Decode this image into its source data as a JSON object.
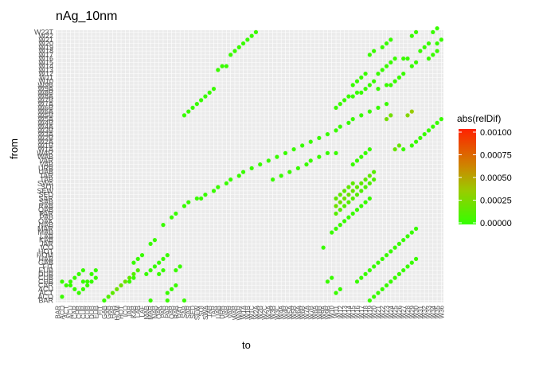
{
  "chart_data": {
    "type": "scatter",
    "title": "nAg_10nm",
    "xlabel": "to",
    "ylabel": "from",
    "n_x_categories": 92,
    "n_y_categories": 72,
    "x_tick_labels": [
      "BAR",
      "ACO",
      "ACT",
      "ACU",
      "CAR",
      "CHB",
      "CUB",
      "CUB",
      "DUB",
      "EUB",
      "FIT",
      "GAB",
      "GAB",
      "HAB",
      "HOM",
      "HOT",
      "ICO",
      "JAR",
      "KAB",
      "LAB",
      "LAF",
      "MAB",
      "MAR",
      "NAB",
      "OAK",
      "PAB",
      "PAR",
      "QAB",
      "RAB",
      "RAT",
      "SAB",
      "SAR",
      "SED",
      "SEW",
      "SOI",
      "SWA",
      "TAB",
      "TAR",
      "UAB",
      "URB",
      "VAB",
      "VAR",
      "WAB",
      "WAR",
      "W1A",
      "W1B",
      "W1C",
      "W2A",
      "W2B",
      "W2C",
      "W3A",
      "W3B",
      "W3C",
      "W4A",
      "W4B",
      "W5A",
      "W5B",
      "W6A",
      "W6B",
      "W7A",
      "W7B",
      "W8A",
      "W8B",
      "W9A",
      "W9B",
      "W10",
      "W11",
      "W12",
      "W13",
      "W14",
      "W15",
      "W16",
      "W17",
      "W18",
      "W19",
      "W20",
      "W21",
      "W22",
      "W23",
      "W24",
      "W25",
      "W26",
      "W27",
      "W28",
      "W29",
      "W30",
      "W31",
      "W32",
      "W33",
      "W34",
      "W35",
      "W36"
    ],
    "y_tick_labels": [
      "BAR",
      "ACO",
      "ACT",
      "ACU",
      "CAR",
      "CHB",
      "CUB",
      "DUB",
      "EUB",
      "FIT",
      "GAB",
      "HAB",
      "HOM",
      "HOT",
      "ICO",
      "JAR",
      "KAB",
      "LAB",
      "MAB",
      "MAR",
      "NAB",
      "OAK",
      "PAB",
      "PAR",
      "QAB",
      "RAB",
      "SAB",
      "SAR",
      "SED",
      "SEW",
      "SOI",
      "SWA",
      "TAB",
      "TAR",
      "UAB",
      "URB",
      "VAB",
      "VAR",
      "WAB",
      "WAR",
      "W1A",
      "W1B",
      "W2A",
      "W2B",
      "W3A",
      "W3B",
      "W4A",
      "W4B",
      "W5A",
      "W5B",
      "W6A",
      "W6B",
      "W7A",
      "W7B",
      "W8A",
      "W8B",
      "W9A",
      "W9B",
      "W10",
      "W11",
      "W12",
      "W13",
      "W14",
      "W15",
      "W16",
      "W17",
      "W18",
      "W19",
      "W20",
      "W21",
      "W22",
      "W23T"
    ],
    "points": [
      {
        "x": 1,
        "y": 5,
        "c": 2e-05
      },
      {
        "x": 1,
        "y": 1,
        "c": 2e-05
      },
      {
        "x": 2,
        "y": 4,
        "c": 2e-05
      },
      {
        "x": 3,
        "y": 4,
        "c": 2e-05
      },
      {
        "x": 3,
        "y": 5,
        "c": 2e-05
      },
      {
        "x": 4,
        "y": 6,
        "c": 2e-05
      },
      {
        "x": 5,
        "y": 7,
        "c": 2e-05
      },
      {
        "x": 6,
        "y": 8,
        "c": 2e-05
      },
      {
        "x": 4,
        "y": 3,
        "c": 2e-05
      },
      {
        "x": 6,
        "y": 5,
        "c": 2e-05
      },
      {
        "x": 7,
        "y": 5,
        "c": 2e-05
      },
      {
        "x": 5,
        "y": 2,
        "c": 2e-05
      },
      {
        "x": 6,
        "y": 3,
        "c": 2e-05
      },
      {
        "x": 7,
        "y": 4,
        "c": 2e-05
      },
      {
        "x": 8,
        "y": 5,
        "c": 2e-05
      },
      {
        "x": 9,
        "y": 6,
        "c": 2e-05
      },
      {
        "x": 8,
        "y": 7,
        "c": 2e-05
      },
      {
        "x": 9,
        "y": 8,
        "c": 2e-05
      },
      {
        "x": 11,
        "y": 0,
        "c": 2e-05
      },
      {
        "x": 12,
        "y": 1,
        "c": 0.0001
      },
      {
        "x": 13,
        "y": 2,
        "c": 0.00015
      },
      {
        "x": 14,
        "y": 3,
        "c": 0.0002
      },
      {
        "x": 15,
        "y": 4,
        "c": 0.0002
      },
      {
        "x": 16,
        "y": 5,
        "c": 0.0002
      },
      {
        "x": 17,
        "y": 6,
        "c": 0.00015
      },
      {
        "x": 18,
        "y": 7,
        "c": 0.00012
      },
      {
        "x": 19,
        "y": 8,
        "c": 0.0001
      },
      {
        "x": 17,
        "y": 5,
        "c": 2e-05
      },
      {
        "x": 18,
        "y": 6,
        "c": 2e-05
      },
      {
        "x": 18,
        "y": 10,
        "c": 2e-05
      },
      {
        "x": 19,
        "y": 11,
        "c": 2e-05
      },
      {
        "x": 20,
        "y": 12,
        "c": 2e-05
      },
      {
        "x": 22,
        "y": 0,
        "c": 2e-05
      },
      {
        "x": 26,
        "y": 0,
        "c": 2e-05
      },
      {
        "x": 21,
        "y": 7,
        "c": 2e-05
      },
      {
        "x": 22,
        "y": 8,
        "c": 2e-05
      },
      {
        "x": 23,
        "y": 9,
        "c": 2e-05
      },
      {
        "x": 24,
        "y": 10,
        "c": 2e-05
      },
      {
        "x": 25,
        "y": 11,
        "c": 2e-05
      },
      {
        "x": 26,
        "y": 12,
        "c": 2e-05
      },
      {
        "x": 24,
        "y": 7,
        "c": 2e-05
      },
      {
        "x": 25,
        "y": 8,
        "c": 2e-05
      },
      {
        "x": 26,
        "y": 2,
        "c": 2e-05
      },
      {
        "x": 27,
        "y": 3,
        "c": 2e-05
      },
      {
        "x": 28,
        "y": 4,
        "c": 2e-05
      },
      {
        "x": 28,
        "y": 8,
        "c": 2e-05
      },
      {
        "x": 29,
        "y": 9,
        "c": 2e-05
      },
      {
        "x": 30,
        "y": 0,
        "c": 2e-05
      },
      {
        "x": 22,
        "y": 15,
        "c": 2e-05
      },
      {
        "x": 23,
        "y": 16,
        "c": 2e-05
      },
      {
        "x": 25,
        "y": 20,
        "c": 2e-05
      },
      {
        "x": 27,
        "y": 22,
        "c": 2e-05
      },
      {
        "x": 28,
        "y": 23,
        "c": 2e-05
      },
      {
        "x": 30,
        "y": 25,
        "c": 2e-05
      },
      {
        "x": 31,
        "y": 26,
        "c": 2e-05
      },
      {
        "x": 33,
        "y": 27,
        "c": 2e-05
      },
      {
        "x": 34,
        "y": 27,
        "c": 2e-05
      },
      {
        "x": 35,
        "y": 28,
        "c": 2e-05
      },
      {
        "x": 37,
        "y": 29,
        "c": 2e-05
      },
      {
        "x": 38,
        "y": 30,
        "c": 2e-05
      },
      {
        "x": 40,
        "y": 31,
        "c": 2e-05
      },
      {
        "x": 41,
        "y": 32,
        "c": 2e-05
      },
      {
        "x": 43,
        "y": 33,
        "c": 2e-05
      },
      {
        "x": 44,
        "y": 34,
        "c": 2e-05
      },
      {
        "x": 46,
        "y": 35,
        "c": 2e-05
      },
      {
        "x": 48,
        "y": 36,
        "c": 2e-05
      },
      {
        "x": 50,
        "y": 37,
        "c": 2e-05
      },
      {
        "x": 52,
        "y": 38,
        "c": 2e-05
      },
      {
        "x": 54,
        "y": 39,
        "c": 2e-05
      },
      {
        "x": 56,
        "y": 40,
        "c": 2e-05
      },
      {
        "x": 58,
        "y": 41,
        "c": 2e-05
      },
      {
        "x": 60,
        "y": 42,
        "c": 2e-05
      },
      {
        "x": 62,
        "y": 43,
        "c": 2e-05
      },
      {
        "x": 64,
        "y": 44,
        "c": 2e-05
      },
      {
        "x": 66,
        "y": 45,
        "c": 2e-05
      },
      {
        "x": 67,
        "y": 46,
        "c": 2e-05
      },
      {
        "x": 69,
        "y": 47,
        "c": 2e-05
      },
      {
        "x": 70,
        "y": 48,
        "c": 2e-05
      },
      {
        "x": 72,
        "y": 49,
        "c": 2e-05
      },
      {
        "x": 74,
        "y": 50,
        "c": 2e-05
      },
      {
        "x": 76,
        "y": 51,
        "c": 2e-05
      },
      {
        "x": 78,
        "y": 52,
        "c": 2e-05
      },
      {
        "x": 30,
        "y": 49,
        "c": 2e-05
      },
      {
        "x": 31,
        "y": 50,
        "c": 2e-05
      },
      {
        "x": 32,
        "y": 51,
        "c": 2e-05
      },
      {
        "x": 33,
        "y": 52,
        "c": 2e-05
      },
      {
        "x": 34,
        "y": 53,
        "c": 2e-05
      },
      {
        "x": 35,
        "y": 54,
        "c": 2e-05
      },
      {
        "x": 36,
        "y": 55,
        "c": 2e-05
      },
      {
        "x": 37,
        "y": 56,
        "c": 2e-05
      },
      {
        "x": 38,
        "y": 61,
        "c": 2e-05
      },
      {
        "x": 39,
        "y": 62,
        "c": 2e-05
      },
      {
        "x": 40,
        "y": 62,
        "c": 2e-05
      },
      {
        "x": 41,
        "y": 65,
        "c": 2e-05
      },
      {
        "x": 42,
        "y": 66,
        "c": 2e-05
      },
      {
        "x": 43,
        "y": 67,
        "c": 2e-05
      },
      {
        "x": 44,
        "y": 68,
        "c": 2e-05
      },
      {
        "x": 45,
        "y": 69,
        "c": 2e-05
      },
      {
        "x": 46,
        "y": 70,
        "c": 2e-05
      },
      {
        "x": 47,
        "y": 71,
        "c": 2e-05
      },
      {
        "x": 51,
        "y": 32,
        "c": 2e-05
      },
      {
        "x": 53,
        "y": 33,
        "c": 2e-05
      },
      {
        "x": 55,
        "y": 34,
        "c": 2e-05
      },
      {
        "x": 57,
        "y": 35,
        "c": 2e-05
      },
      {
        "x": 59,
        "y": 36,
        "c": 2e-05
      },
      {
        "x": 60,
        "y": 37,
        "c": 2e-05
      },
      {
        "x": 62,
        "y": 38,
        "c": 2e-05
      },
      {
        "x": 64,
        "y": 39,
        "c": 2e-05
      },
      {
        "x": 66,
        "y": 39,
        "c": 2e-05
      },
      {
        "x": 66,
        "y": 51,
        "c": 2e-05
      },
      {
        "x": 67,
        "y": 52,
        "c": 2e-05
      },
      {
        "x": 68,
        "y": 53,
        "c": 2e-05
      },
      {
        "x": 69,
        "y": 54,
        "c": 2e-05
      },
      {
        "x": 70,
        "y": 54,
        "c": 2e-05
      },
      {
        "x": 71,
        "y": 55,
        "c": 2e-05
      },
      {
        "x": 70,
        "y": 57,
        "c": 2e-05
      },
      {
        "x": 71,
        "y": 58,
        "c": 2e-05
      },
      {
        "x": 72,
        "y": 59,
        "c": 2e-05
      },
      {
        "x": 73,
        "y": 60,
        "c": 2e-05
      },
      {
        "x": 72,
        "y": 55,
        "c": 2e-05
      },
      {
        "x": 73,
        "y": 56,
        "c": 2e-05
      },
      {
        "x": 74,
        "y": 57,
        "c": 2e-05
      },
      {
        "x": 75,
        "y": 58,
        "c": 2e-05
      },
      {
        "x": 76,
        "y": 56,
        "c": 2e-05
      },
      {
        "x": 78,
        "y": 57,
        "c": 2e-05
      },
      {
        "x": 76,
        "y": 60,
        "c": 2e-05
      },
      {
        "x": 77,
        "y": 61,
        "c": 2e-05
      },
      {
        "x": 78,
        "y": 62,
        "c": 2e-05
      },
      {
        "x": 79,
        "y": 63,
        "c": 2e-05
      },
      {
        "x": 80,
        "y": 64,
        "c": 2e-05
      },
      {
        "x": 79,
        "y": 57,
        "c": 2e-05
      },
      {
        "x": 80,
        "y": 58,
        "c": 2e-05
      },
      {
        "x": 81,
        "y": 59,
        "c": 2e-05
      },
      {
        "x": 82,
        "y": 60,
        "c": 2e-05
      },
      {
        "x": 82,
        "y": 64,
        "c": 2e-05
      },
      {
        "x": 83,
        "y": 64,
        "c": 2e-05
      },
      {
        "x": 74,
        "y": 65,
        "c": 2e-05
      },
      {
        "x": 75,
        "y": 66,
        "c": 2e-05
      },
      {
        "x": 77,
        "y": 67,
        "c": 2e-05
      },
      {
        "x": 78,
        "y": 68,
        "c": 2e-05
      },
      {
        "x": 79,
        "y": 69,
        "c": 2e-05
      },
      {
        "x": 84,
        "y": 62,
        "c": 2e-05
      },
      {
        "x": 85,
        "y": 63,
        "c": 2e-05
      },
      {
        "x": 86,
        "y": 66,
        "c": 2e-05
      },
      {
        "x": 87,
        "y": 67,
        "c": 2e-05
      },
      {
        "x": 88,
        "y": 68,
        "c": 2e-05
      },
      {
        "x": 88,
        "y": 64,
        "c": 2e-05
      },
      {
        "x": 89,
        "y": 65,
        "c": 2e-05
      },
      {
        "x": 90,
        "y": 66,
        "c": 2e-05
      },
      {
        "x": 90,
        "y": 68,
        "c": 2e-05
      },
      {
        "x": 91,
        "y": 69,
        "c": 2e-05
      },
      {
        "x": 84,
        "y": 70,
        "c": 2e-05
      },
      {
        "x": 85,
        "y": 71,
        "c": 2e-05
      },
      {
        "x": 89,
        "y": 71,
        "c": 2e-05
      },
      {
        "x": 90,
        "y": 72,
        "c": 2e-05
      },
      {
        "x": 78,
        "y": 48,
        "c": 0.00022
      },
      {
        "x": 79,
        "y": 49,
        "c": 0.00022
      },
      {
        "x": 83,
        "y": 49,
        "c": 0.00028
      },
      {
        "x": 84,
        "y": 50,
        "c": 0.00035
      },
      {
        "x": 80,
        "y": 40,
        "c": 0.00018
      },
      {
        "x": 81,
        "y": 41,
        "c": 0.00018
      },
      {
        "x": 82,
        "y": 40,
        "c": 2e-05
      },
      {
        "x": 84,
        "y": 41,
        "c": 2e-05
      },
      {
        "x": 85,
        "y": 42,
        "c": 2e-05
      },
      {
        "x": 86,
        "y": 43,
        "c": 2e-05
      },
      {
        "x": 87,
        "y": 44,
        "c": 2e-05
      },
      {
        "x": 88,
        "y": 45,
        "c": 2e-05
      },
      {
        "x": 89,
        "y": 46,
        "c": 2e-05
      },
      {
        "x": 90,
        "y": 47,
        "c": 2e-05
      },
      {
        "x": 91,
        "y": 48,
        "c": 2e-05
      },
      {
        "x": 70,
        "y": 36,
        "c": 2e-05
      },
      {
        "x": 71,
        "y": 37,
        "c": 2e-05
      },
      {
        "x": 72,
        "y": 38,
        "c": 2e-05
      },
      {
        "x": 73,
        "y": 39,
        "c": 2e-05
      },
      {
        "x": 74,
        "y": 40,
        "c": 2e-05
      },
      {
        "x": 66,
        "y": 27,
        "c": 0.00015
      },
      {
        "x": 67,
        "y": 28,
        "c": 0.00015
      },
      {
        "x": 68,
        "y": 29,
        "c": 0.00015
      },
      {
        "x": 69,
        "y": 30,
        "c": 0.00015
      },
      {
        "x": 70,
        "y": 31,
        "c": 0.00015
      },
      {
        "x": 66,
        "y": 25,
        "c": 0.0002
      },
      {
        "x": 67,
        "y": 26,
        "c": 0.0002
      },
      {
        "x": 68,
        "y": 27,
        "c": 0.0002
      },
      {
        "x": 69,
        "y": 28,
        "c": 0.0002
      },
      {
        "x": 70,
        "y": 29,
        "c": 0.00018
      },
      {
        "x": 71,
        "y": 30,
        "c": 0.00015
      },
      {
        "x": 72,
        "y": 31,
        "c": 0.00015
      },
      {
        "x": 73,
        "y": 32,
        "c": 0.00015
      },
      {
        "x": 74,
        "y": 33,
        "c": 0.00015
      },
      {
        "x": 75,
        "y": 34,
        "c": 0.00012
      },
      {
        "x": 66,
        "y": 23,
        "c": 0.00012
      },
      {
        "x": 67,
        "y": 24,
        "c": 0.00012
      },
      {
        "x": 68,
        "y": 25,
        "c": 0.00012
      },
      {
        "x": 69,
        "y": 26,
        "c": 0.00012
      },
      {
        "x": 70,
        "y": 27,
        "c": 0.00012
      },
      {
        "x": 71,
        "y": 28,
        "c": 0.00012
      },
      {
        "x": 72,
        "y": 29,
        "c": 0.0001
      },
      {
        "x": 73,
        "y": 30,
        "c": 0.0001
      },
      {
        "x": 74,
        "y": 31,
        "c": 0.0001
      },
      {
        "x": 75,
        "y": 32,
        "c": 0.0001
      },
      {
        "x": 65,
        "y": 18,
        "c": 2e-05
      },
      {
        "x": 66,
        "y": 19,
        "c": 2e-05
      },
      {
        "x": 67,
        "y": 20,
        "c": 2e-05
      },
      {
        "x": 68,
        "y": 21,
        "c": 2e-05
      },
      {
        "x": 69,
        "y": 22,
        "c": 2e-05
      },
      {
        "x": 70,
        "y": 23,
        "c": 2e-05
      },
      {
        "x": 71,
        "y": 24,
        "c": 2e-05
      },
      {
        "x": 72,
        "y": 25,
        "c": 2e-05
      },
      {
        "x": 73,
        "y": 26,
        "c": 2e-05
      },
      {
        "x": 74,
        "y": 27,
        "c": 2e-05
      },
      {
        "x": 63,
        "y": 14,
        "c": 2e-05
      },
      {
        "x": 64,
        "y": 5,
        "c": 2e-05
      },
      {
        "x": 65,
        "y": 6,
        "c": 2e-05
      },
      {
        "x": 66,
        "y": 2,
        "c": 2e-05
      },
      {
        "x": 67,
        "y": 3,
        "c": 2e-05
      },
      {
        "x": 71,
        "y": 5,
        "c": 2e-05
      },
      {
        "x": 72,
        "y": 6,
        "c": 2e-05
      },
      {
        "x": 73,
        "y": 7,
        "c": 2e-05
      },
      {
        "x": 74,
        "y": 8,
        "c": 2e-05
      },
      {
        "x": 75,
        "y": 9,
        "c": 2e-05
      },
      {
        "x": 76,
        "y": 10,
        "c": 2e-05
      },
      {
        "x": 77,
        "y": 11,
        "c": 2e-05
      },
      {
        "x": 78,
        "y": 12,
        "c": 2e-05
      },
      {
        "x": 79,
        "y": 13,
        "c": 2e-05
      },
      {
        "x": 80,
        "y": 14,
        "c": 2e-05
      },
      {
        "x": 81,
        "y": 15,
        "c": 2e-05
      },
      {
        "x": 82,
        "y": 16,
        "c": 2e-05
      },
      {
        "x": 83,
        "y": 17,
        "c": 2e-05
      },
      {
        "x": 84,
        "y": 18,
        "c": 2e-05
      },
      {
        "x": 85,
        "y": 19,
        "c": 2e-05
      },
      {
        "x": 74,
        "y": 0,
        "c": 2e-05
      },
      {
        "x": 75,
        "y": 1,
        "c": 2e-05
      },
      {
        "x": 76,
        "y": 2,
        "c": 2e-05
      },
      {
        "x": 77,
        "y": 3,
        "c": 2e-05
      },
      {
        "x": 78,
        "y": 4,
        "c": 2e-05
      },
      {
        "x": 79,
        "y": 5,
        "c": 2e-05
      },
      {
        "x": 80,
        "y": 6,
        "c": 2e-05
      },
      {
        "x": 81,
        "y": 7,
        "c": 2e-05
      },
      {
        "x": 82,
        "y": 8,
        "c": 2e-05
      },
      {
        "x": 83,
        "y": 9,
        "c": 2e-05
      },
      {
        "x": 84,
        "y": 10,
        "c": 2e-05
      },
      {
        "x": 85,
        "y": 11,
        "c": 2e-05
      }
    ],
    "legend": {
      "title": "abs(relDif)",
      "ticks": [
        "0.00100",
        "0.00075",
        "0.00050",
        "0.00025",
        "0.00000"
      ],
      "min": 0,
      "max": 0.001,
      "low_color": "#33ff00",
      "high_color": "#ff2200"
    },
    "grid": true,
    "legend_position": "right"
  },
  "colors": {
    "panel": "#ebebeb",
    "grid_major": "#ffffff",
    "tick_text": "#4d4d4d"
  }
}
